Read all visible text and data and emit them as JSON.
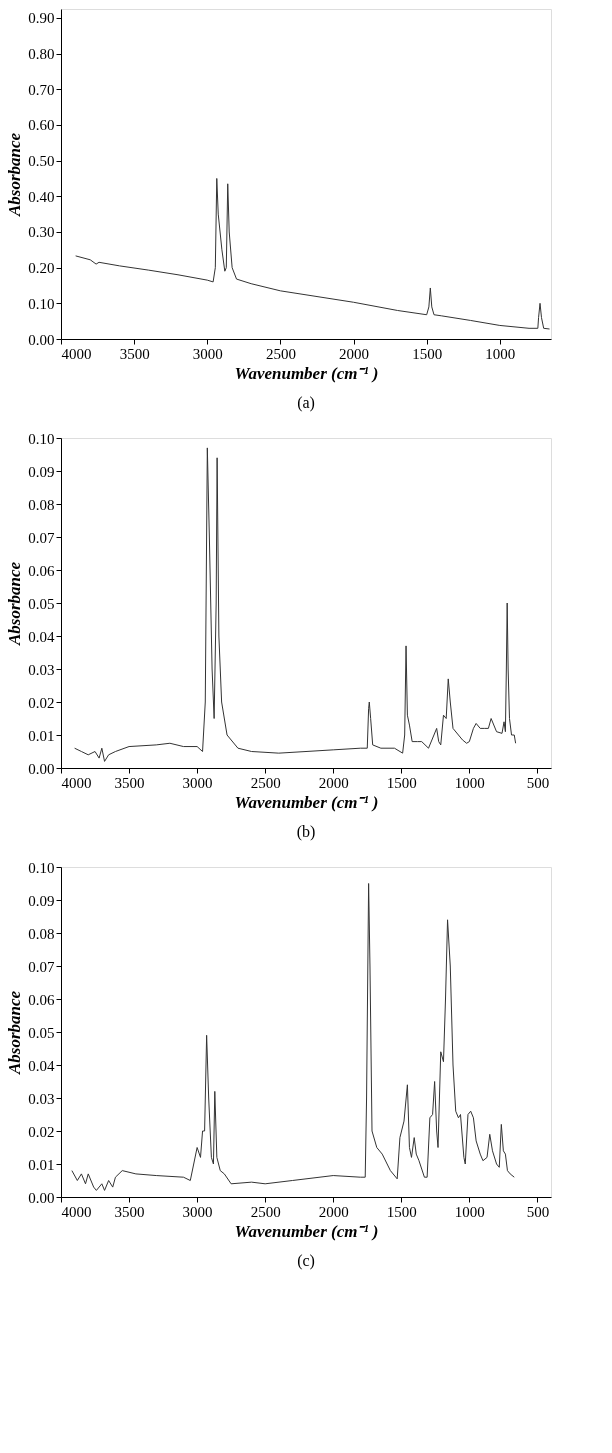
{
  "chart_data": [
    {
      "type": "line",
      "xlabel": "Wavenumber (cm⁻¹ )",
      "ylabel": "Absorbance",
      "annotations": [
        "(a)"
      ],
      "grid": false,
      "xlim": [
        4000,
        650
      ],
      "xticks": [
        4000,
        3500,
        3000,
        2500,
        2000,
        1500,
        1000
      ],
      "ylim": [
        0,
        0.925
      ],
      "yticks": [
        {
          "value": 0,
          "label": "0.00"
        },
        {
          "value": 0.1,
          "label": "0.10"
        },
        {
          "value": 0.2,
          "label": "0.20"
        },
        {
          "value": 0.3,
          "label": "0.30"
        },
        {
          "value": 0.4,
          "label": "0.40"
        },
        {
          "value": 0.5,
          "label": "0.50"
        },
        {
          "value": 0.6,
          "label": "0.60"
        },
        {
          "value": 0.7,
          "label": "0.70"
        },
        {
          "value": 0.8,
          "label": "0.80"
        },
        {
          "value": 0.9,
          "label": "0.90"
        }
      ],
      "series": [
        {
          "color": "#333333",
          "x": [
            3900,
            3800,
            3760,
            3740,
            3600,
            3400,
            3200,
            3000,
            2960,
            2945,
            2935,
            2925,
            2900,
            2880,
            2870,
            2860,
            2850,
            2830,
            2800,
            2700,
            2500,
            2000,
            1700,
            1500,
            1485,
            1475,
            1465,
            1450,
            1400,
            1200,
            1000,
            800,
            740,
            735,
            725,
            715,
            700,
            660
          ],
          "values": [
            0.233,
            0.222,
            0.21,
            0.215,
            0.205,
            0.193,
            0.18,
            0.165,
            0.16,
            0.2,
            0.45,
            0.35,
            0.25,
            0.19,
            0.2,
            0.435,
            0.3,
            0.2,
            0.168,
            0.155,
            0.135,
            0.103,
            0.08,
            0.068,
            0.09,
            0.143,
            0.09,
            0.068,
            0.065,
            0.052,
            0.038,
            0.03,
            0.03,
            0.06,
            0.1,
            0.06,
            0.03,
            0.028
          ]
        }
      ]
    },
    {
      "type": "line",
      "xlabel": "Wavenumber (cm⁻¹ )",
      "ylabel": "Absorbance",
      "annotations": [
        "(b)"
      ],
      "grid": false,
      "xlim": [
        4000,
        400
      ],
      "xticks": [
        4000,
        3500,
        3000,
        2500,
        2000,
        1500,
        1000,
        500
      ],
      "ylim": [
        0,
        0.1
      ],
      "yticks": [
        {
          "value": 0,
          "label": "0.00"
        },
        {
          "value": 0.01,
          "label": "0.01"
        },
        {
          "value": 0.02,
          "label": "0.02"
        },
        {
          "value": 0.03,
          "label": "0.03"
        },
        {
          "value": 0.04,
          "label": "0.04"
        },
        {
          "value": 0.05,
          "label": "0.05"
        },
        {
          "value": 0.06,
          "label": "0.06"
        },
        {
          "value": 0.07,
          "label": "0.07"
        },
        {
          "value": 0.08,
          "label": "0.08"
        },
        {
          "value": 0.09,
          "label": "0.09"
        },
        {
          "value": 0.1,
          "label": "0.10"
        }
      ],
      "series": [
        {
          "color": "#333333",
          "x": [
            3900,
            3850,
            3800,
            3750,
            3720,
            3700,
            3680,
            3650,
            3600,
            3500,
            3300,
            3200,
            3100,
            3000,
            2960,
            2940,
            2925,
            2910,
            2890,
            2875,
            2860,
            2853,
            2840,
            2820,
            2780,
            2700,
            2600,
            2400,
            2200,
            2000,
            1800,
            1750,
            1740,
            1735,
            1725,
            1710,
            1650,
            1550,
            1490,
            1475,
            1465,
            1455,
            1440,
            1420,
            1380,
            1350,
            1300,
            1260,
            1240,
            1225,
            1210,
            1190,
            1170,
            1155,
            1140,
            1120,
            1080,
            1050,
            1020,
            1000,
            970,
            950,
            920,
            890,
            860,
            840,
            800,
            760,
            745,
            735,
            728,
            722,
            715,
            705,
            690,
            670,
            660
          ],
          "values": [
            0.006,
            0.005,
            0.004,
            0.005,
            0.003,
            0.006,
            0.002,
            0.004,
            0.005,
            0.0065,
            0.007,
            0.0075,
            0.0065,
            0.0065,
            0.005,
            0.02,
            0.097,
            0.07,
            0.03,
            0.015,
            0.05,
            0.094,
            0.04,
            0.02,
            0.01,
            0.006,
            0.005,
            0.0045,
            0.005,
            0.0055,
            0.006,
            0.006,
            0.018,
            0.02,
            0.015,
            0.007,
            0.006,
            0.006,
            0.0045,
            0.01,
            0.037,
            0.016,
            0.013,
            0.008,
            0.008,
            0.008,
            0.006,
            0.01,
            0.012,
            0.008,
            0.007,
            0.016,
            0.015,
            0.027,
            0.02,
            0.012,
            0.01,
            0.0085,
            0.0075,
            0.008,
            0.012,
            0.0135,
            0.012,
            0.012,
            0.012,
            0.015,
            0.011,
            0.0105,
            0.014,
            0.011,
            0.03,
            0.05,
            0.03,
            0.015,
            0.01,
            0.01,
            0.0075
          ]
        }
      ]
    },
    {
      "type": "line",
      "xlabel": "Wavenumber (cm⁻¹ )",
      "ylabel": "Absorbance",
      "annotations": [
        "(c)"
      ],
      "grid": false,
      "xlim": [
        4000,
        400
      ],
      "xticks": [
        4000,
        3500,
        3000,
        2500,
        2000,
        1500,
        1000,
        500
      ],
      "ylim": [
        0,
        0.1
      ],
      "yticks": [
        {
          "value": 0,
          "label": "0.00"
        },
        {
          "value": 0.01,
          "label": "0.01"
        },
        {
          "value": 0.02,
          "label": "0.02"
        },
        {
          "value": 0.03,
          "label": "0.03"
        },
        {
          "value": 0.04,
          "label": "0.04"
        },
        {
          "value": 0.05,
          "label": "0.05"
        },
        {
          "value": 0.06,
          "label": "0.06"
        },
        {
          "value": 0.07,
          "label": "0.07"
        },
        {
          "value": 0.08,
          "label": "0.08"
        },
        {
          "value": 0.09,
          "label": "0.09"
        },
        {
          "value": 0.1,
          "label": "0.10"
        }
      ],
      "series": [
        {
          "color": "#333333",
          "x": [
            3920,
            3880,
            3850,
            3820,
            3800,
            3760,
            3740,
            3700,
            3680,
            3650,
            3620,
            3600,
            3550,
            3450,
            3300,
            3100,
            3050,
            3000,
            2975,
            2960,
            2945,
            2930,
            2915,
            2895,
            2880,
            2870,
            2855,
            2830,
            2800,
            2750,
            2600,
            2500,
            2300,
            2000,
            1800,
            1765,
            1755,
            1740,
            1730,
            1715,
            1680,
            1640,
            1580,
            1530,
            1510,
            1480,
            1455,
            1440,
            1425,
            1405,
            1390,
            1370,
            1330,
            1310,
            1290,
            1270,
            1255,
            1240,
            1230,
            1210,
            1190,
            1175,
            1160,
            1140,
            1120,
            1100,
            1080,
            1065,
            1040,
            1030,
            1010,
            990,
            970,
            950,
            920,
            900,
            870,
            850,
            830,
            800,
            780,
            765,
            750,
            735,
            720,
            700,
            670
          ],
          "values": [
            0.008,
            0.005,
            0.007,
            0.004,
            0.007,
            0.003,
            0.002,
            0.004,
            0.002,
            0.005,
            0.003,
            0.006,
            0.008,
            0.007,
            0.0065,
            0.006,
            0.005,
            0.015,
            0.012,
            0.02,
            0.02,
            0.049,
            0.03,
            0.012,
            0.01,
            0.032,
            0.012,
            0.008,
            0.007,
            0.004,
            0.0045,
            0.004,
            0.005,
            0.0065,
            0.006,
            0.006,
            0.03,
            0.095,
            0.07,
            0.02,
            0.015,
            0.013,
            0.008,
            0.0055,
            0.018,
            0.023,
            0.034,
            0.015,
            0.012,
            0.018,
            0.013,
            0.011,
            0.006,
            0.006,
            0.024,
            0.025,
            0.035,
            0.02,
            0.015,
            0.044,
            0.041,
            0.06,
            0.084,
            0.07,
            0.04,
            0.026,
            0.024,
            0.025,
            0.012,
            0.01,
            0.025,
            0.026,
            0.024,
            0.017,
            0.013,
            0.011,
            0.012,
            0.019,
            0.014,
            0.01,
            0.009,
            0.022,
            0.014,
            0.013,
            0.008,
            0.007,
            0.006
          ]
        }
      ]
    }
  ]
}
